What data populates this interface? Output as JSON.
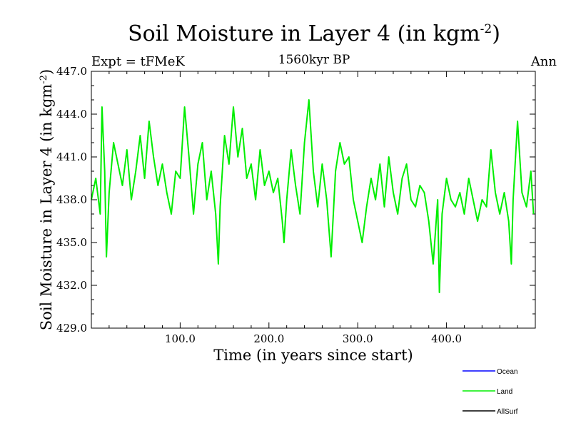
{
  "header": {
    "title_main": "Soil Moisture in Layer 4 (in kgm",
    "title_sup": "-2",
    "title_end": ")",
    "subtitle": "1560kyr BP",
    "expt": "Expt = tFMeK",
    "season": "Ann"
  },
  "chart_data": {
    "type": "line",
    "title": "Soil Moisture in Layer 4 (in kgm-2)",
    "xlabel": "Time (in years since start)",
    "ylabel_main": "Soil Moisture in Layer 4 (in kgm",
    "ylabel_sup": "-2",
    "ylabel_end": ")",
    "xlim": [
      0,
      500
    ],
    "ylim": [
      429.0,
      447.0
    ],
    "xticks": [
      100,
      200,
      300,
      400
    ],
    "xtick_labels": [
      "100.0",
      "200.0",
      "300.0",
      "400.0"
    ],
    "yticks": [
      429,
      432,
      435,
      438,
      441,
      444,
      447
    ],
    "ytick_labels": [
      "429.0",
      "432.0",
      "435.0",
      "438.0",
      "441.0",
      "444.0",
      "447.0"
    ],
    "legend": [
      {
        "name": "Ocean",
        "color": "#0000ff"
      },
      {
        "name": "Land",
        "color": "#00ee00"
      },
      {
        "name": "AllSurf",
        "color": "#000000"
      }
    ],
    "series": [
      {
        "name": "Land",
        "color": "#00ee00",
        "x": [
          0,
          5,
          10,
          12,
          15,
          17,
          20,
          25,
          30,
          35,
          40,
          45,
          50,
          55,
          60,
          65,
          70,
          75,
          80,
          85,
          90,
          95,
          100,
          105,
          110,
          115,
          120,
          125,
          130,
          135,
          140,
          143,
          145,
          150,
          155,
          160,
          165,
          170,
          175,
          180,
          185,
          190,
          195,
          200,
          205,
          210,
          215,
          217,
          220,
          225,
          230,
          235,
          240,
          245,
          250,
          255,
          260,
          265,
          270,
          275,
          280,
          285,
          290,
          295,
          300,
          305,
          310,
          315,
          320,
          325,
          330,
          335,
          340,
          345,
          350,
          355,
          360,
          365,
          370,
          375,
          380,
          385,
          390,
          392,
          395,
          400,
          405,
          410,
          415,
          420,
          425,
          430,
          435,
          440,
          445,
          450,
          455,
          460,
          465,
          470,
          473,
          475,
          480,
          485,
          490,
          495,
          498
        ],
        "y": [
          438.0,
          439.5,
          437.0,
          444.5,
          440.0,
          434.0,
          438.5,
          442.0,
          440.5,
          439.0,
          441.5,
          438.0,
          440.0,
          442.5,
          439.5,
          443.5,
          441.0,
          439.0,
          440.5,
          438.5,
          437.0,
          440.0,
          439.5,
          444.5,
          441.0,
          437.0,
          440.5,
          442.0,
          438.0,
          440.0,
          437.0,
          433.5,
          437.5,
          442.5,
          440.5,
          444.5,
          441.0,
          443.0,
          439.5,
          440.5,
          438.0,
          441.5,
          439.0,
          440.0,
          438.5,
          439.5,
          436.5,
          435.0,
          438.0,
          441.5,
          439.0,
          437.0,
          442.0,
          445.0,
          440.0,
          437.5,
          440.5,
          438.0,
          434.0,
          440.0,
          442.0,
          440.5,
          441.0,
          438.0,
          436.5,
          435.0,
          437.5,
          439.5,
          438.0,
          440.5,
          437.5,
          441.0,
          438.5,
          437.0,
          439.5,
          440.5,
          438.0,
          437.5,
          439.0,
          438.5,
          436.5,
          433.5,
          438.0,
          431.5,
          437.0,
          439.5,
          438.0,
          437.5,
          438.5,
          437.0,
          439.5,
          438.0,
          436.5,
          438.0,
          437.5,
          441.5,
          438.5,
          437.0,
          438.5,
          436.5,
          433.5,
          438.0,
          443.5,
          438.5,
          437.5,
          440.0,
          437.0
        ]
      }
    ]
  }
}
